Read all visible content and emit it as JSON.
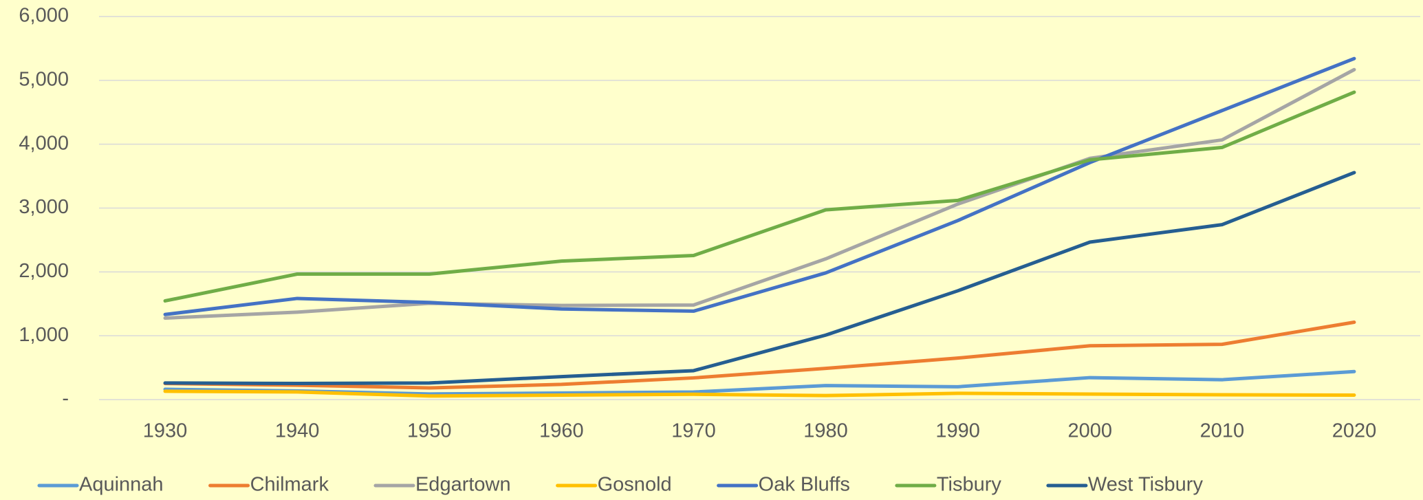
{
  "chart_data": {
    "type": "line",
    "categories": [
      "1930",
      "1940",
      "1950",
      "1960",
      "1970",
      "1980",
      "1990",
      "2000",
      "2010",
      "2020"
    ],
    "series": [
      {
        "name": "Aquinnah",
        "color": "#5b9bd5",
        "values": [
          161,
          136,
          88,
          103,
          118,
          220,
          201,
          344,
          311,
          439
        ]
      },
      {
        "name": "Chilmark",
        "color": "#ed7d31",
        "values": [
          252,
          225,
          183,
          238,
          340,
          489,
          650,
          843,
          866,
          1212
        ]
      },
      {
        "name": "Edgartown",
        "color": "#a5a5a5",
        "values": [
          1276,
          1370,
          1508,
          1474,
          1481,
          2204,
          3062,
          3779,
          4067,
          5168
        ]
      },
      {
        "name": "Gosnold",
        "color": "#ffc000",
        "values": [
          130,
          120,
          56,
          70,
          83,
          63,
          98,
          86,
          75,
          70
        ]
      },
      {
        "name": "Oak Bluffs",
        "color": "#4472c4",
        "values": [
          1333,
          1584,
          1521,
          1419,
          1385,
          1984,
          2804,
          3713,
          4527,
          5341
        ]
      },
      {
        "name": "Tisbury",
        "color": "#70ad47",
        "values": [
          1546,
          1966,
          1966,
          2169,
          2257,
          2972,
          3120,
          3755,
          3949,
          4815
        ]
      },
      {
        "name": "West Tisbury",
        "color": "#255e91",
        "values": [
          260,
          253,
          260,
          360,
          453,
          1010,
          1704,
          2467,
          2740,
          3555
        ]
      }
    ],
    "ylim": [
      0,
      6000
    ],
    "yticks": [
      {
        "value": 0,
        "label": "-"
      },
      {
        "value": 1000,
        "label": "1,000"
      },
      {
        "value": 2000,
        "label": "2,000"
      },
      {
        "value": 3000,
        "label": "3,000"
      },
      {
        "value": 4000,
        "label": "4,000"
      },
      {
        "value": 5000,
        "label": "5,000"
      },
      {
        "value": 6000,
        "label": "6,000"
      }
    ],
    "grid": true,
    "legend": "bottom"
  }
}
